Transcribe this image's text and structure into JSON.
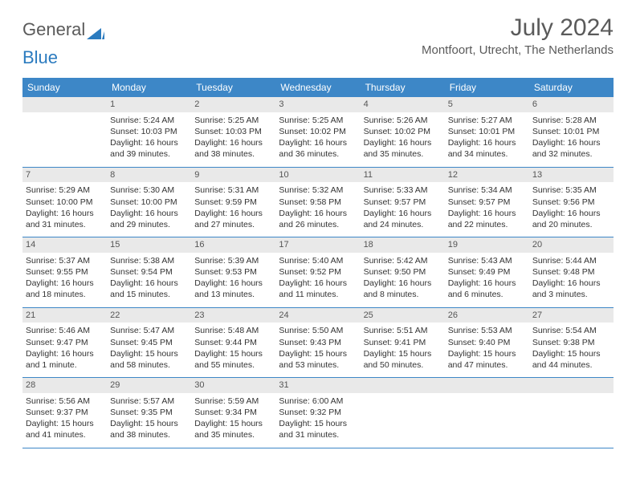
{
  "logo": {
    "text1": "General",
    "text2": "Blue"
  },
  "title": "July 2024",
  "location": "Montfoort, Utrecht, The Netherlands",
  "colors": {
    "header_bg": "#3d87c7",
    "header_text": "#ffffff",
    "daynum_bg": "#e9e9e9",
    "border": "#3d87c7",
    "title_color": "#5a5a5a",
    "body_text": "#333333"
  },
  "weekdays": [
    "Sunday",
    "Monday",
    "Tuesday",
    "Wednesday",
    "Thursday",
    "Friday",
    "Saturday"
  ],
  "weeks": [
    [
      {
        "day": "",
        "sunrise": "",
        "sunset": "",
        "daylight": ""
      },
      {
        "day": "1",
        "sunrise": "Sunrise: 5:24 AM",
        "sunset": "Sunset: 10:03 PM",
        "daylight": "Daylight: 16 hours and 39 minutes."
      },
      {
        "day": "2",
        "sunrise": "Sunrise: 5:25 AM",
        "sunset": "Sunset: 10:03 PM",
        "daylight": "Daylight: 16 hours and 38 minutes."
      },
      {
        "day": "3",
        "sunrise": "Sunrise: 5:25 AM",
        "sunset": "Sunset: 10:02 PM",
        "daylight": "Daylight: 16 hours and 36 minutes."
      },
      {
        "day": "4",
        "sunrise": "Sunrise: 5:26 AM",
        "sunset": "Sunset: 10:02 PM",
        "daylight": "Daylight: 16 hours and 35 minutes."
      },
      {
        "day": "5",
        "sunrise": "Sunrise: 5:27 AM",
        "sunset": "Sunset: 10:01 PM",
        "daylight": "Daylight: 16 hours and 34 minutes."
      },
      {
        "day": "6",
        "sunrise": "Sunrise: 5:28 AM",
        "sunset": "Sunset: 10:01 PM",
        "daylight": "Daylight: 16 hours and 32 minutes."
      }
    ],
    [
      {
        "day": "7",
        "sunrise": "Sunrise: 5:29 AM",
        "sunset": "Sunset: 10:00 PM",
        "daylight": "Daylight: 16 hours and 31 minutes."
      },
      {
        "day": "8",
        "sunrise": "Sunrise: 5:30 AM",
        "sunset": "Sunset: 10:00 PM",
        "daylight": "Daylight: 16 hours and 29 minutes."
      },
      {
        "day": "9",
        "sunrise": "Sunrise: 5:31 AM",
        "sunset": "Sunset: 9:59 PM",
        "daylight": "Daylight: 16 hours and 27 minutes."
      },
      {
        "day": "10",
        "sunrise": "Sunrise: 5:32 AM",
        "sunset": "Sunset: 9:58 PM",
        "daylight": "Daylight: 16 hours and 26 minutes."
      },
      {
        "day": "11",
        "sunrise": "Sunrise: 5:33 AM",
        "sunset": "Sunset: 9:57 PM",
        "daylight": "Daylight: 16 hours and 24 minutes."
      },
      {
        "day": "12",
        "sunrise": "Sunrise: 5:34 AM",
        "sunset": "Sunset: 9:57 PM",
        "daylight": "Daylight: 16 hours and 22 minutes."
      },
      {
        "day": "13",
        "sunrise": "Sunrise: 5:35 AM",
        "sunset": "Sunset: 9:56 PM",
        "daylight": "Daylight: 16 hours and 20 minutes."
      }
    ],
    [
      {
        "day": "14",
        "sunrise": "Sunrise: 5:37 AM",
        "sunset": "Sunset: 9:55 PM",
        "daylight": "Daylight: 16 hours and 18 minutes."
      },
      {
        "day": "15",
        "sunrise": "Sunrise: 5:38 AM",
        "sunset": "Sunset: 9:54 PM",
        "daylight": "Daylight: 16 hours and 15 minutes."
      },
      {
        "day": "16",
        "sunrise": "Sunrise: 5:39 AM",
        "sunset": "Sunset: 9:53 PM",
        "daylight": "Daylight: 16 hours and 13 minutes."
      },
      {
        "day": "17",
        "sunrise": "Sunrise: 5:40 AM",
        "sunset": "Sunset: 9:52 PM",
        "daylight": "Daylight: 16 hours and 11 minutes."
      },
      {
        "day": "18",
        "sunrise": "Sunrise: 5:42 AM",
        "sunset": "Sunset: 9:50 PM",
        "daylight": "Daylight: 16 hours and 8 minutes."
      },
      {
        "day": "19",
        "sunrise": "Sunrise: 5:43 AM",
        "sunset": "Sunset: 9:49 PM",
        "daylight": "Daylight: 16 hours and 6 minutes."
      },
      {
        "day": "20",
        "sunrise": "Sunrise: 5:44 AM",
        "sunset": "Sunset: 9:48 PM",
        "daylight": "Daylight: 16 hours and 3 minutes."
      }
    ],
    [
      {
        "day": "21",
        "sunrise": "Sunrise: 5:46 AM",
        "sunset": "Sunset: 9:47 PM",
        "daylight": "Daylight: 16 hours and 1 minute."
      },
      {
        "day": "22",
        "sunrise": "Sunrise: 5:47 AM",
        "sunset": "Sunset: 9:45 PM",
        "daylight": "Daylight: 15 hours and 58 minutes."
      },
      {
        "day": "23",
        "sunrise": "Sunrise: 5:48 AM",
        "sunset": "Sunset: 9:44 PM",
        "daylight": "Daylight: 15 hours and 55 minutes."
      },
      {
        "day": "24",
        "sunrise": "Sunrise: 5:50 AM",
        "sunset": "Sunset: 9:43 PM",
        "daylight": "Daylight: 15 hours and 53 minutes."
      },
      {
        "day": "25",
        "sunrise": "Sunrise: 5:51 AM",
        "sunset": "Sunset: 9:41 PM",
        "daylight": "Daylight: 15 hours and 50 minutes."
      },
      {
        "day": "26",
        "sunrise": "Sunrise: 5:53 AM",
        "sunset": "Sunset: 9:40 PM",
        "daylight": "Daylight: 15 hours and 47 minutes."
      },
      {
        "day": "27",
        "sunrise": "Sunrise: 5:54 AM",
        "sunset": "Sunset: 9:38 PM",
        "daylight": "Daylight: 15 hours and 44 minutes."
      }
    ],
    [
      {
        "day": "28",
        "sunrise": "Sunrise: 5:56 AM",
        "sunset": "Sunset: 9:37 PM",
        "daylight": "Daylight: 15 hours and 41 minutes."
      },
      {
        "day": "29",
        "sunrise": "Sunrise: 5:57 AM",
        "sunset": "Sunset: 9:35 PM",
        "daylight": "Daylight: 15 hours and 38 minutes."
      },
      {
        "day": "30",
        "sunrise": "Sunrise: 5:59 AM",
        "sunset": "Sunset: 9:34 PM",
        "daylight": "Daylight: 15 hours and 35 minutes."
      },
      {
        "day": "31",
        "sunrise": "Sunrise: 6:00 AM",
        "sunset": "Sunset: 9:32 PM",
        "daylight": "Daylight: 15 hours and 31 minutes."
      },
      {
        "day": "",
        "sunrise": "",
        "sunset": "",
        "daylight": ""
      },
      {
        "day": "",
        "sunrise": "",
        "sunset": "",
        "daylight": ""
      },
      {
        "day": "",
        "sunrise": "",
        "sunset": "",
        "daylight": ""
      }
    ]
  ]
}
